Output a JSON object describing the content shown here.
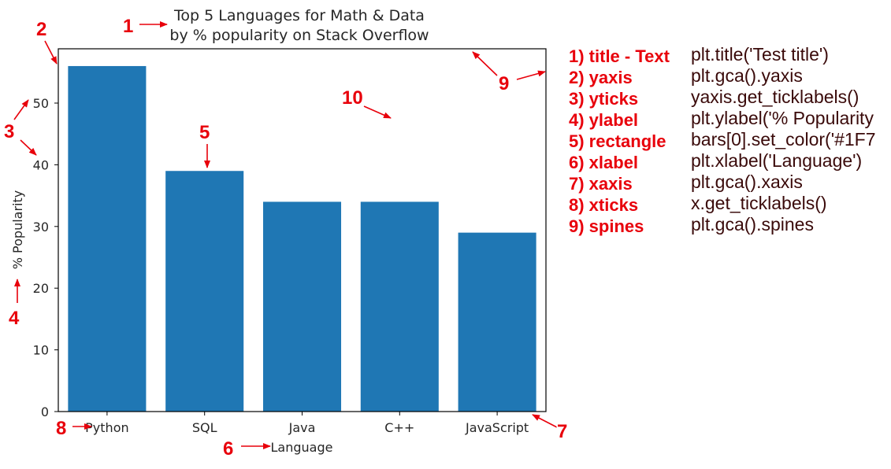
{
  "chart_data": {
    "type": "bar",
    "title": "Top 5 Languages for Math & Data\nby % popularity on Stack Overflow",
    "xlabel": "Language",
    "ylabel": "% Popularity",
    "categories": [
      "Python",
      "SQL",
      "Java",
      "C++",
      "JavaScript"
    ],
    "values": [
      56,
      39,
      34,
      34,
      29
    ],
    "ylim": [
      0,
      58.8
    ],
    "yticks": [
      0,
      10,
      20,
      30,
      40,
      50
    ],
    "bar_color": "#1f77b4",
    "grid": false
  },
  "annotations": {
    "color": "#e8000b",
    "numbers": [
      "1",
      "2",
      "3",
      "4",
      "5",
      "6",
      "7",
      "8",
      "9",
      "10"
    ]
  },
  "legend": {
    "items": [
      {
        "label": "1) title - Text",
        "code": "plt.title('Test title')"
      },
      {
        "label": "2) yaxis",
        "code": "plt.gca().yaxis"
      },
      {
        "label": "3) yticks",
        "code": "yaxis.get_ticklabels()"
      },
      {
        "label": "4) ylabel",
        "code": "plt.ylabel('% Popularity"
      },
      {
        "label": "5) rectangle",
        "code": "bars[0].set_color('#1F7"
      },
      {
        "label": "6) xlabel",
        "code": "plt.xlabel('Language')"
      },
      {
        "label": "7) xaxis",
        "code": "plt.gca().xaxis"
      },
      {
        "label": "8) xticks",
        "code": "x.get_ticklabels()"
      },
      {
        "label": "9) spines",
        "code": "plt.gca().spines"
      }
    ]
  }
}
